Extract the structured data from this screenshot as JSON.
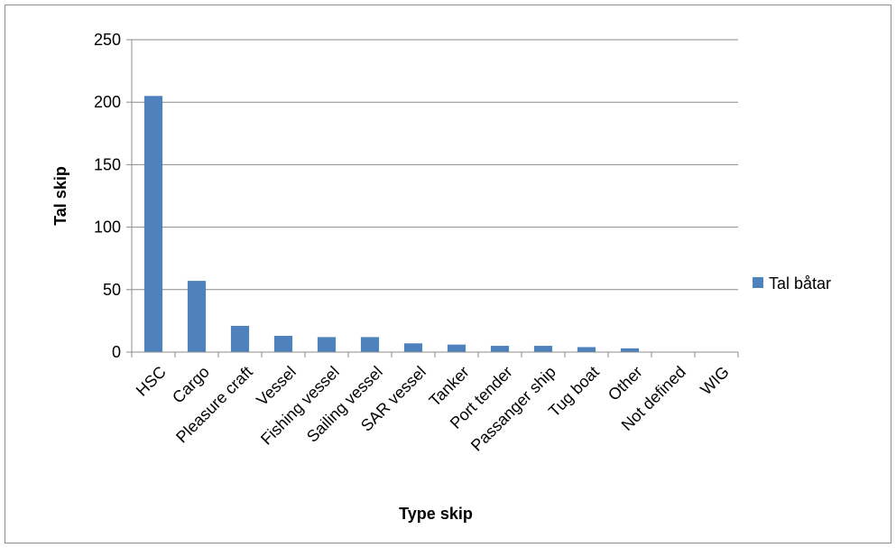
{
  "chart_data": {
    "type": "bar",
    "categories": [
      "HSC",
      "Cargo",
      "Pleasure craft",
      "Vessel",
      "Fishing vessel",
      "Sailing vessel",
      "SAR vessel",
      "Tanker",
      "Port tender",
      "Passanger ship",
      "Tug boat",
      "Other",
      "Not defined",
      "WIG"
    ],
    "series": [
      {
        "name": "Tal båtar",
        "values": [
          205,
          57,
          21,
          13,
          12,
          12,
          7,
          6,
          5,
          5,
          4,
          3,
          0,
          0
        ],
        "color": "#4f81bd"
      }
    ],
    "title": "",
    "xlabel": "Type skip",
    "ylabel": "Tal skip",
    "ylim": [
      0,
      250
    ],
    "yticks": [
      0,
      50,
      100,
      150,
      200,
      250
    ],
    "grid": true,
    "legend_position": "right"
  }
}
